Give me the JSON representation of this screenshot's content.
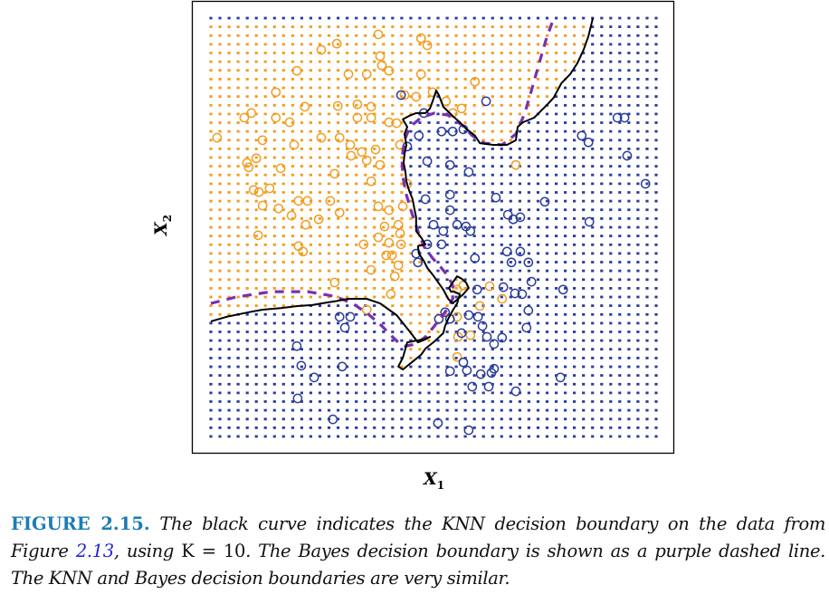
{
  "figure": {
    "label": "FIGURE 2.15.",
    "caption_part1": " The black curve indicates the KNN decision boundary on the data from Figure ",
    "caption_ref": "2.13",
    "caption_part2": ", using ",
    "caption_k": "K = 10",
    "caption_part3": ". The Bayes decision boundary is shown as a purple dashed line. The KNN and Bayes decision boundaries are very similar.",
    "label_color": "#1b7db5",
    "ref_color": "#2424d8"
  },
  "chart_data": {
    "type": "scatter",
    "title": "",
    "xlabel": "X",
    "xlabel_sub": "1",
    "ylabel": "X",
    "ylabel_sub": "2",
    "xlim": [
      0,
      100
    ],
    "ylim": [
      0,
      100
    ],
    "grid": false,
    "ticks": "none",
    "background_grid": {
      "columns": 50,
      "rows": 49,
      "description": "dot grid colored by KNN (K=10) predicted class"
    },
    "colors": {
      "orange": "#f39c1f",
      "blue": "#2b3c9a",
      "knn_boundary": "#000000",
      "bayes_boundary": "#7b2fb0"
    },
    "series": [
      {
        "name": "orange",
        "color": "#f39c1f",
        "marker": "open-circle",
        "points": [
          [
            37.6,
            96.1
          ],
          [
            47.2,
            95.2
          ],
          [
            28.3,
            93.9
          ],
          [
            48.6,
            93.5
          ],
          [
            24.8,
            92.4
          ],
          [
            38.0,
            90.9
          ],
          [
            38.4,
            88.7
          ],
          [
            40.0,
            87.4
          ],
          [
            19.3,
            87.4
          ],
          [
            30.9,
            86.6
          ],
          [
            35.0,
            86.6
          ],
          [
            47.2,
            86.6
          ],
          [
            59.3,
            84.8
          ],
          [
            43.5,
            81.6
          ],
          [
            49.8,
            82.3
          ],
          [
            14.6,
            82.3
          ],
          [
            46.1,
            81.2
          ],
          [
            32.9,
            79.4
          ],
          [
            36.0,
            78.8
          ],
          [
            28.5,
            79.0
          ],
          [
            52.8,
            80.1
          ],
          [
            21.1,
            78.8
          ],
          [
            7.5,
            76.2
          ],
          [
            9.1,
            77.3
          ],
          [
            14.6,
            76.2
          ],
          [
            17.7,
            75.1
          ],
          [
            32.9,
            76.2
          ],
          [
            36.0,
            76.2
          ],
          [
            41.7,
            74.9
          ],
          [
            1.4,
            71.4
          ],
          [
            24.8,
            71.4
          ],
          [
            28.9,
            71.4
          ],
          [
            40.0,
            75.1
          ],
          [
            42.5,
            69.7
          ],
          [
            54.3,
            77.3
          ],
          [
            56.3,
            78.4
          ],
          [
            11.6,
            70.8
          ],
          [
            18.7,
            69.7
          ],
          [
            31.3,
            69.7
          ],
          [
            33.9,
            68.0
          ],
          [
            37.0,
            68.6
          ],
          [
            31.5,
            67.1
          ],
          [
            35.0,
            66.0
          ],
          [
            38.0,
            64.9
          ],
          [
            8.1,
            65.4
          ],
          [
            8.5,
            64.3
          ],
          [
            10.2,
            66.5
          ],
          [
            15.7,
            64.1
          ],
          [
            27.8,
            62.8
          ],
          [
            36.0,
            61.0
          ],
          [
            13.2,
            59.3
          ],
          [
            10.8,
            58.4
          ],
          [
            9.6,
            58.9
          ],
          [
            44.1,
            60.4
          ],
          [
            11.6,
            55.2
          ],
          [
            19.7,
            56.3
          ],
          [
            21.7,
            56.3
          ],
          [
            26.8,
            56.3
          ],
          [
            28.9,
            53.5
          ],
          [
            37.6,
            55.0
          ],
          [
            40.0,
            54.1
          ],
          [
            43.1,
            55.0
          ],
          [
            15.2,
            54.5
          ],
          [
            18.1,
            52.8
          ],
          [
            24.2,
            51.9
          ],
          [
            21.3,
            50.6
          ],
          [
            10.6,
            48.1
          ],
          [
            39.0,
            50.2
          ],
          [
            42.1,
            50.6
          ],
          [
            42.5,
            48.5
          ],
          [
            42.7,
            45.9
          ],
          [
            40.0,
            46.3
          ],
          [
            37.6,
            47.6
          ],
          [
            19.7,
            45.5
          ],
          [
            20.7,
            44.2
          ],
          [
            34.3,
            45.9
          ],
          [
            39.4,
            43.3
          ],
          [
            42.1,
            40.9
          ],
          [
            36.0,
            39.8
          ],
          [
            40.7,
            43.3
          ],
          [
            41.3,
            38.3
          ],
          [
            27.8,
            36.8
          ],
          [
            40.4,
            34.0
          ],
          [
            35.0,
            30.3
          ],
          [
            55.3,
            35.1
          ],
          [
            56.7,
            36.1
          ],
          [
            60.4,
            31.2
          ],
          [
            55.3,
            28.6
          ],
          [
            68.5,
            64.9
          ],
          [
            62.6,
            35.9
          ],
          [
            65.4,
            32.9
          ],
          [
            58.3,
            24.2
          ],
          [
            55.5,
            23.8
          ],
          [
            55.3,
            19.0
          ]
        ]
      },
      {
        "name": "blue",
        "color": "#2b3c9a",
        "marker": "open-circle",
        "points": [
          [
            42.7,
            81.6
          ],
          [
            61.8,
            80.1
          ],
          [
            47.8,
            77.3
          ],
          [
            91.3,
            76.2
          ],
          [
            92.9,
            76.2
          ],
          [
            51.8,
            72.9
          ],
          [
            54.3,
            72.9
          ],
          [
            56.7,
            73.4
          ],
          [
            83.3,
            71.9
          ],
          [
            84.8,
            70.3
          ],
          [
            46.7,
            71.9
          ],
          [
            44.1,
            69.3
          ],
          [
            93.5,
            67.1
          ],
          [
            48.6,
            65.8
          ],
          [
            57.9,
            63.2
          ],
          [
            53.7,
            64.9
          ],
          [
            97.6,
            60.4
          ],
          [
            48.2,
            56.7
          ],
          [
            53.7,
            57.8
          ],
          [
            64.0,
            57.1
          ],
          [
            75.0,
            56.1
          ],
          [
            66.7,
            53.0
          ],
          [
            69.5,
            52.4
          ],
          [
            67.9,
            51.9
          ],
          [
            53.7,
            54.1
          ],
          [
            55.3,
            50.6
          ],
          [
            52.2,
            49.1
          ],
          [
            57.3,
            50.2
          ],
          [
            50.0,
            50.6
          ],
          [
            85.0,
            51.3
          ],
          [
            58.3,
            49.1
          ],
          [
            48.6,
            45.9
          ],
          [
            51.8,
            45.9
          ],
          [
            59.3,
            42.6
          ],
          [
            66.5,
            44.2
          ],
          [
            69.5,
            44.2
          ],
          [
            67.5,
            41.6
          ],
          [
            71.3,
            41.6
          ],
          [
            72.0,
            37.0
          ],
          [
            79.1,
            35.1
          ],
          [
            46.1,
            43.7
          ],
          [
            59.8,
            35.1
          ],
          [
            65.7,
            35.7
          ],
          [
            68.3,
            34.2
          ],
          [
            69.9,
            34.0
          ],
          [
            46.5,
            41.6
          ],
          [
            57.9,
            29.0
          ],
          [
            60.0,
            28.6
          ],
          [
            61.0,
            26.4
          ],
          [
            65.4,
            23.6
          ],
          [
            56.3,
            24.7
          ],
          [
            53.7,
            28.1
          ],
          [
            52.6,
            29.7
          ],
          [
            51.2,
            28.1
          ],
          [
            62.0,
            23.8
          ],
          [
            63.6,
            22.1
          ],
          [
            70.9,
            26.0
          ],
          [
            71.3,
            30.1
          ],
          [
            28.9,
            28.6
          ],
          [
            31.3,
            28.6
          ],
          [
            30.1,
            26.0
          ],
          [
            19.3,
            21.6
          ],
          [
            20.3,
            16.9
          ],
          [
            29.5,
            16.7
          ],
          [
            23.2,
            14.1
          ],
          [
            19.5,
            9.1
          ],
          [
            27.4,
            4.1
          ],
          [
            51.0,
            3.2
          ],
          [
            57.9,
            1.5
          ],
          [
            53.7,
            15.6
          ],
          [
            56.7,
            17.7
          ],
          [
            57.5,
            15.8
          ],
          [
            60.6,
            14.9
          ],
          [
            63.6,
            16.2
          ],
          [
            63.0,
            15.2
          ],
          [
            62.4,
            11.9
          ],
          [
            68.5,
            10.8
          ],
          [
            78.5,
            14.1
          ],
          [
            58.7,
            11.9
          ]
        ]
      }
    ],
    "bayes_boundary": {
      "name": "Bayes decision boundary",
      "style": "dashed",
      "color": "#7b2fb0",
      "points": [
        [
          0,
          31.8
        ],
        [
          5.5,
          33.3
        ],
        [
          13.6,
          34.6
        ],
        [
          21.7,
          34.6
        ],
        [
          27.8,
          33.5
        ],
        [
          31.9,
          31.8
        ],
        [
          35.6,
          29.0
        ],
        [
          38.4,
          26.4
        ],
        [
          40.4,
          24.2
        ],
        [
          42.1,
          22.5
        ],
        [
          43.7,
          21.6
        ],
        [
          46.1,
          22.1
        ],
        [
          48.2,
          23.8
        ],
        [
          50.2,
          26.4
        ],
        [
          51.8,
          28.6
        ],
        [
          53.3,
          30.7
        ],
        [
          54.3,
          32.9
        ],
        [
          54.3,
          36.1
        ],
        [
          53.3,
          38.3
        ],
        [
          51.6,
          40.5
        ],
        [
          49.8,
          42.6
        ],
        [
          47.8,
          45.5
        ],
        [
          46.5,
          49.1
        ],
        [
          45.1,
          53.5
        ],
        [
          43.9,
          57.8
        ],
        [
          43.1,
          62.1
        ],
        [
          42.9,
          66.5
        ],
        [
          43.5,
          70.8
        ],
        [
          44.7,
          74.0
        ],
        [
          47.2,
          76.2
        ],
        [
          50.2,
          77.3
        ],
        [
          53.3,
          76.8
        ],
        [
          56.3,
          74.5
        ],
        [
          58.7,
          71.9
        ],
        [
          61.4,
          70.1
        ],
        [
          65.4,
          69.7
        ],
        [
          68.5,
          72.3
        ],
        [
          70.5,
          77.3
        ],
        [
          72.0,
          82.7
        ],
        [
          73.6,
          88.7
        ],
        [
          75.2,
          94.6
        ],
        [
          77.0,
          100
        ]
      ]
    },
    "knn_boundary": {
      "name": "KNN decision boundary (K = 10)",
      "style": "solid",
      "color": "#000000",
      "points": [
        [
          0,
          27.5
        ],
        [
          3.5,
          28.6
        ],
        [
          8.5,
          29.7
        ],
        [
          11.6,
          30.3
        ],
        [
          15.7,
          30.7
        ],
        [
          19.7,
          31.2
        ],
        [
          22.8,
          31.4
        ],
        [
          24.8,
          31.8
        ],
        [
          27.8,
          32.3
        ],
        [
          30.9,
          32.9
        ],
        [
          35.0,
          32.9
        ],
        [
          38.0,
          31.8
        ],
        [
          41.7,
          29.0
        ],
        [
          44.5,
          25.3
        ],
        [
          46.5,
          22.5
        ],
        [
          48.2,
          23.2
        ],
        [
          49.2,
          23.8
        ],
        [
          47.8,
          23.2
        ],
        [
          46.1,
          22.9
        ],
        [
          44.1,
          22.5
        ],
        [
          43.7,
          21.0
        ],
        [
          43.1,
          18.8
        ],
        [
          42.1,
          16.7
        ],
        [
          43.1,
          16.0
        ],
        [
          45.1,
          17.7
        ],
        [
          47.2,
          19.5
        ],
        [
          48.2,
          21.0
        ],
        [
          50.2,
          22.7
        ],
        [
          52.2,
          24.7
        ],
        [
          52.6,
          26.4
        ],
        [
          53.3,
          28.1
        ],
        [
          54.3,
          30.1
        ],
        [
          55.3,
          31.8
        ],
        [
          55.9,
          34.0
        ],
        [
          54.7,
          34.6
        ],
        [
          53.9,
          34.6
        ],
        [
          53.5,
          35.5
        ],
        [
          54.3,
          36.8
        ],
        [
          55.3,
          38.3
        ],
        [
          56.3,
          37.7
        ],
        [
          57.3,
          36.8
        ],
        [
          57.9,
          35.5
        ],
        [
          56.7,
          34.0
        ],
        [
          55.5,
          32.9
        ],
        [
          54.3,
          31.8
        ],
        [
          53.3,
          32.9
        ],
        [
          52.2,
          35.1
        ],
        [
          50.8,
          37.2
        ],
        [
          49.8,
          38.7
        ],
        [
          48.6,
          40.3
        ],
        [
          47.8,
          42.0
        ],
        [
          46.7,
          43.7
        ],
        [
          46.5,
          45.5
        ],
        [
          48.2,
          45.9
        ],
        [
          47.2,
          47.6
        ],
        [
          46.1,
          49.1
        ],
        [
          46.1,
          52.4
        ],
        [
          45.7,
          54.5
        ],
        [
          45.3,
          56.7
        ],
        [
          44.5,
          58.9
        ],
        [
          43.9,
          61.0
        ],
        [
          43.7,
          63.2
        ],
        [
          43.3,
          65.4
        ],
        [
          43.5,
          67.5
        ],
        [
          43.9,
          69.7
        ],
        [
          43.5,
          72.3
        ],
        [
          44.1,
          74.0
        ],
        [
          43.1,
          75.8
        ],
        [
          44.5,
          76.6
        ],
        [
          46.1,
          77.3
        ],
        [
          48.2,
          77.3
        ],
        [
          49.2,
          78.4
        ],
        [
          49.8,
          80.1
        ],
        [
          50.6,
          82.7
        ],
        [
          51.2,
          81.6
        ],
        [
          52.2,
          78.8
        ],
        [
          54.3,
          76.6
        ],
        [
          55.9,
          75.1
        ],
        [
          57.3,
          73.6
        ],
        [
          59.3,
          71.9
        ],
        [
          60.4,
          70.1
        ],
        [
          63.4,
          69.7
        ],
        [
          66.5,
          69.7
        ],
        [
          68.5,
          70.8
        ],
        [
          68.9,
          74.0
        ],
        [
          70.1,
          75.1
        ],
        [
          72.6,
          76.2
        ],
        [
          75.6,
          79.4
        ],
        [
          77.0,
          81.0
        ],
        [
          78.7,
          84.4
        ],
        [
          80.7,
          86.6
        ],
        [
          82.3,
          89.2
        ],
        [
          83.7,
          92.4
        ],
        [
          84.8,
          95.7
        ],
        [
          85.8,
          100
        ]
      ]
    }
  }
}
